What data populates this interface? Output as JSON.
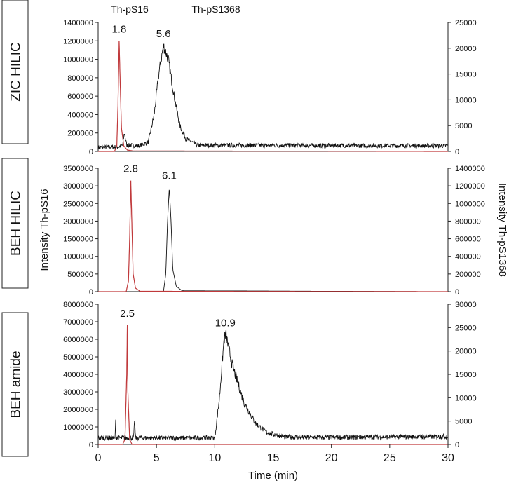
{
  "chart_data": {
    "type": "line",
    "legend_labels": [
      "Th-pS16",
      "Th-pS1368"
    ],
    "xlabel": "Time (min)",
    "ylabel_left": "Intensity Th-pS16",
    "ylabel_right": "Intensity Th-pS1368",
    "xlim": [
      0,
      30
    ],
    "xticks": [
      0,
      5,
      10,
      15,
      20,
      25,
      30
    ],
    "grid": false,
    "colors": {
      "Th-pS16": "#c0393b",
      "Th-pS1368": "#111111"
    },
    "panels": [
      {
        "label": "ZIC HILIC",
        "ylim_left": [
          0,
          1400000
        ],
        "yticks_left": [
          0,
          200000,
          400000,
          600000,
          800000,
          1000000,
          1200000,
          1400000
        ],
        "ylim_right": [
          0,
          25000
        ],
        "yticks_right": [
          0,
          5000,
          10000,
          15000,
          20000,
          25000
        ],
        "annotations": [
          {
            "text": "1.8",
            "x": 1.8,
            "series": "left"
          },
          {
            "text": "5.6",
            "x": 5.6,
            "series": "right"
          }
        ],
        "left_series": {
          "name": "Th-pS16",
          "points": [
            [
              0,
              0
            ],
            [
              1.4,
              0
            ],
            [
              1.6,
              60000
            ],
            [
              1.7,
              500000
            ],
            [
              1.8,
              1200000
            ],
            [
              1.9,
              700000
            ],
            [
              2.0,
              250000
            ],
            [
              2.2,
              60000
            ],
            [
              2.5,
              15000
            ],
            [
              3,
              5000
            ],
            [
              30,
              0
            ]
          ]
        },
        "right_series": {
          "name": "Th-pS1368",
          "points": [
            [
              0,
              800
            ],
            [
              1.8,
              900
            ],
            [
              2.1,
              1200
            ],
            [
              2.25,
              3600
            ],
            [
              2.45,
              1200
            ],
            [
              3.5,
              1100
            ],
            [
              4.3,
              1800
            ],
            [
              4.8,
              7000
            ],
            [
              5.2,
              15000
            ],
            [
              5.6,
              20500
            ],
            [
              6.0,
              18000
            ],
            [
              6.5,
              11000
            ],
            [
              7.0,
              5000
            ],
            [
              7.5,
              2500
            ],
            [
              8.5,
              1200
            ],
            [
              30,
              1100
            ]
          ]
        }
      },
      {
        "label": "BEH HILIC",
        "ylim_left": [
          0,
          3500000
        ],
        "yticks_left": [
          0,
          500000,
          1000000,
          1500000,
          2000000,
          2500000,
          3000000,
          3500000
        ],
        "ylim_right": [
          0,
          1400000
        ],
        "yticks_right": [
          0,
          200000,
          400000,
          600000,
          800000,
          1000000,
          1200000,
          1400000
        ],
        "annotations": [
          {
            "text": "2.8",
            "x": 2.8,
            "series": "left"
          },
          {
            "text": "6.1",
            "x": 6.1,
            "series": "right"
          }
        ],
        "left_series": {
          "name": "Th-pS16",
          "points": [
            [
              0,
              0
            ],
            [
              2.4,
              0
            ],
            [
              2.6,
              300000
            ],
            [
              2.7,
              1500000
            ],
            [
              2.8,
              3150000
            ],
            [
              2.9,
              1800000
            ],
            [
              3.0,
              500000
            ],
            [
              3.2,
              100000
            ],
            [
              3.6,
              10000
            ],
            [
              30,
              0
            ]
          ]
        },
        "right_series": {
          "name": "Th-pS1368",
          "points": [
            [
              0,
              0
            ],
            [
              5.6,
              0
            ],
            [
              5.8,
              200000
            ],
            [
              5.95,
              800000
            ],
            [
              6.1,
              1180000
            ],
            [
              6.25,
              800000
            ],
            [
              6.4,
              250000
            ],
            [
              6.7,
              60000
            ],
            [
              7.2,
              10000
            ],
            [
              30,
              0
            ]
          ]
        }
      },
      {
        "label": "BEH amide",
        "ylim_left": [
          0,
          8000000
        ],
        "yticks_left": [
          0,
          1000000,
          2000000,
          3000000,
          4000000,
          5000000,
          6000000,
          7000000,
          8000000
        ],
        "ylim_right": [
          0,
          30000
        ],
        "yticks_right": [
          0,
          5000,
          10000,
          15000,
          20000,
          25000,
          30000
        ],
        "annotations": [
          {
            "text": "2.5",
            "x": 2.5,
            "series": "left"
          },
          {
            "text": "10.9",
            "x": 10.9,
            "series": "right"
          }
        ],
        "left_series": {
          "name": "Th-pS16",
          "points": [
            [
              0,
              0
            ],
            [
              2.1,
              0
            ],
            [
              2.3,
              300000
            ],
            [
              2.45,
              4000000
            ],
            [
              2.5,
              6800000
            ],
            [
              2.55,
              3000000
            ],
            [
              2.7,
              300000
            ],
            [
              2.9,
              0
            ],
            [
              30,
              0
            ]
          ]
        },
        "right_series": {
          "name": "Th-pS1368",
          "points": [
            [
              0,
              1400
            ],
            [
              1.45,
              1400
            ],
            [
              1.5,
              5000
            ],
            [
              1.55,
              1400
            ],
            [
              3.05,
              1400
            ],
            [
              3.12,
              5500
            ],
            [
              3.2,
              1400
            ],
            [
              10.0,
              1400
            ],
            [
              10.4,
              10000
            ],
            [
              10.8,
              22500
            ],
            [
              10.95,
              23500
            ],
            [
              11.5,
              17000
            ],
            [
              12.5,
              9000
            ],
            [
              13.5,
              4500
            ],
            [
              14.5,
              2500
            ],
            [
              16,
              1600
            ],
            [
              20,
              1500
            ],
            [
              30,
              1700
            ]
          ]
        }
      }
    ]
  }
}
